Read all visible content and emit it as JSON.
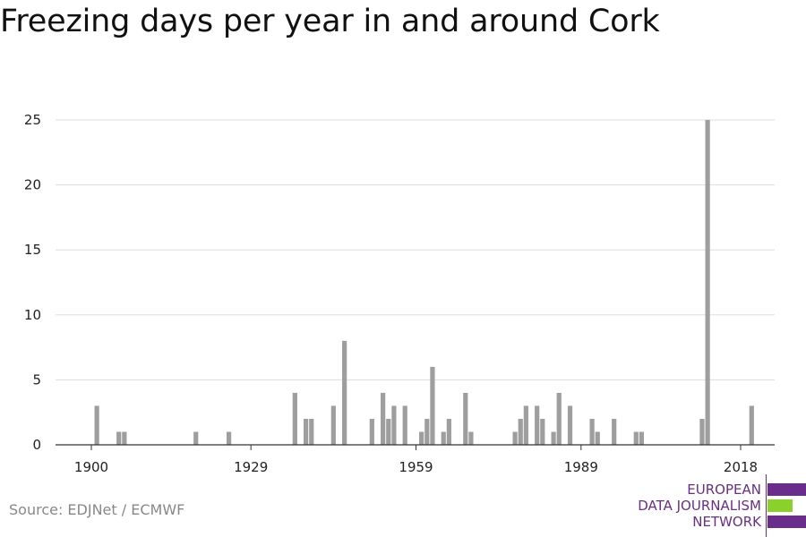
{
  "title": "Freezing days per year in and around Cork",
  "source": "Source: EDJNet / ECMWF",
  "logo": {
    "line1": "EUROPEAN",
    "line2": "DATA JOURNALISM",
    "line3": "NETWORK"
  },
  "colors": {
    "bar": "#9e9e9e",
    "grid": "#dddddd",
    "axis": "#333333",
    "logo_purple": "#6b2d8c",
    "logo_green": "#8bd12b"
  },
  "chart_data": {
    "type": "bar",
    "title": "Freezing days per year in and around Cork",
    "xlabel": "",
    "ylabel": "",
    "xlim": [
      1900,
      2018
    ],
    "ylim": [
      0,
      25
    ],
    "x_ticks": [
      1900,
      1929,
      1959,
      1989,
      2018
    ],
    "y_ticks": [
      0,
      5,
      10,
      15,
      20,
      25
    ],
    "grid": true,
    "x": [
      1901,
      1905,
      1906,
      1919,
      1925,
      1937,
      1939,
      1940,
      1944,
      1946,
      1951,
      1953,
      1954,
      1955,
      1957,
      1960,
      1961,
      1962,
      1964,
      1965,
      1968,
      1969,
      1977,
      1978,
      1979,
      1981,
      1982,
      1984,
      1985,
      1987,
      1991,
      1992,
      1995,
      1999,
      2000,
      2011,
      2012,
      2020
    ],
    "values": [
      3,
      1,
      1,
      1,
      1,
      4,
      2,
      2,
      3,
      8,
      2,
      4,
      2,
      3,
      3,
      1,
      2,
      6,
      1,
      2,
      4,
      1,
      1,
      2,
      3,
      3,
      2,
      1,
      4,
      3,
      2,
      1,
      2,
      1,
      1,
      2,
      25,
      3
    ]
  }
}
